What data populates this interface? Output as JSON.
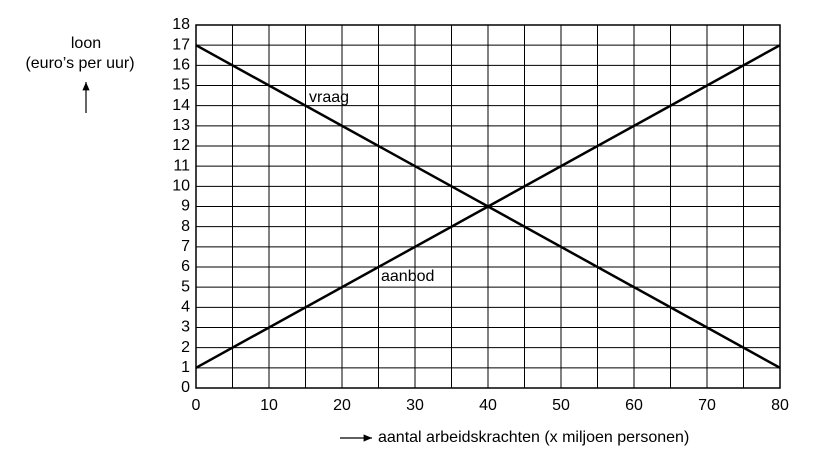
{
  "chart_data": {
    "type": "line",
    "y_label": [
      "loon",
      "(euro’s per uur)"
    ],
    "x_label": "aantal arbeidskrachten (x miljoen personen)",
    "x": [
      0,
      80
    ],
    "series": [
      {
        "name": "vraag",
        "color": "#000000",
        "values": [
          17,
          1
        ]
      },
      {
        "name": "aanbod",
        "color": "#000000",
        "values": [
          1,
          17
        ]
      }
    ],
    "xlim": [
      0,
      80
    ],
    "ylim": [
      0,
      18
    ],
    "xticks": [
      0,
      10,
      20,
      30,
      40,
      50,
      60,
      70,
      80
    ],
    "x_minor_grid": [
      5,
      15,
      25,
      35,
      45,
      55,
      65,
      75
    ],
    "yticks": [
      0,
      1,
      2,
      3,
      4,
      5,
      6,
      7,
      8,
      9,
      10,
      11,
      12,
      13,
      14,
      15,
      16,
      17,
      18
    ],
    "grid": true
  }
}
